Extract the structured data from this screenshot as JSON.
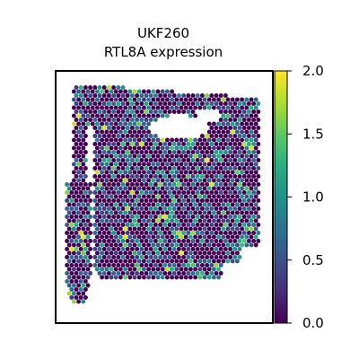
{
  "chart_data": {
    "type": "scatter",
    "subtype": "spatial-hexbin-expression-map",
    "title_line1": "UKF260",
    "title_line2": "RTL8A expression",
    "xlabel": "",
    "ylabel": "",
    "axis_ticks_visible": false,
    "grid": false,
    "colormap": "viridis",
    "colorbar": {
      "vmin": 0.0,
      "vmax": 2.0,
      "ticks": [
        0.0,
        0.5,
        1.0,
        1.5,
        2.0
      ],
      "tick_labels": [
        "0.0",
        "0.5",
        "1.0",
        "1.5",
        "2.0"
      ],
      "placement": "right"
    },
    "value_distribution": {
      "background_value": 0.0,
      "most_common_range": [
        0.0,
        1.0
      ],
      "max_observed": 2.0
    }
  }
}
